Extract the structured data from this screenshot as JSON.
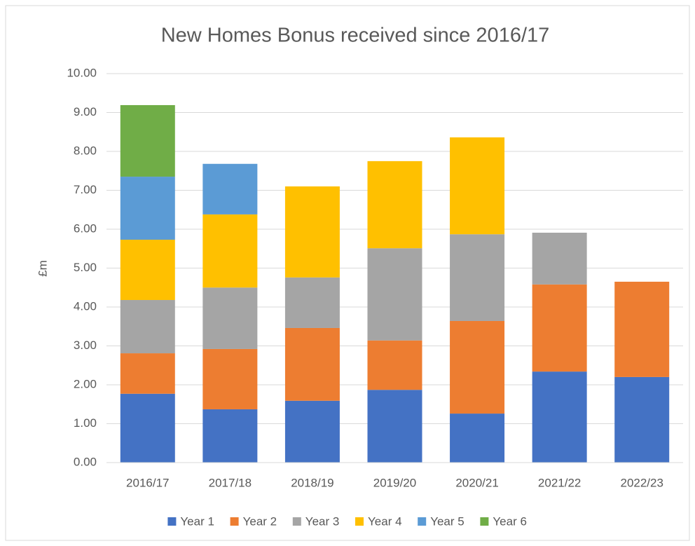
{
  "chart_data": {
    "type": "stacked_bar",
    "title": "New Homes Bonus received since 2016/17",
    "y_label": "£m",
    "categories": [
      "2016/17",
      "2017/18",
      "2018/19",
      "2019/20",
      "2020/21",
      "2021/22",
      "2022/23"
    ],
    "series": [
      {
        "name": "Year 1",
        "color": "#4472c4",
        "values": [
          1.77,
          1.37,
          1.59,
          1.87,
          1.26,
          2.34,
          2.2
        ]
      },
      {
        "name": "Year 2",
        "color": "#ed7d31",
        "values": [
          1.04,
          1.55,
          1.87,
          1.27,
          2.38,
          2.24,
          2.45
        ]
      },
      {
        "name": "Year 3",
        "color": "#a5a5a5",
        "values": [
          1.37,
          1.58,
          1.3,
          2.37,
          2.23,
          1.33,
          null
        ]
      },
      {
        "name": "Year 4",
        "color": "#ffc000",
        "values": [
          1.55,
          1.88,
          2.34,
          2.24,
          2.49,
          null,
          null
        ]
      },
      {
        "name": "Year 5",
        "color": "#5b9bd5",
        "values": [
          1.62,
          1.3,
          null,
          null,
          null,
          null,
          null
        ]
      },
      {
        "name": "Year 6",
        "color": "#70ad47",
        "values": [
          1.84,
          null,
          null,
          null,
          null,
          null,
          null
        ]
      }
    ],
    "ylim": [
      0,
      10
    ],
    "yticks": [
      {
        "value": 0,
        "label": "0.00"
      },
      {
        "value": 1,
        "label": "1.00"
      },
      {
        "value": 2,
        "label": "2.00"
      },
      {
        "value": 3,
        "label": "3.00"
      },
      {
        "value": 4,
        "label": "4.00"
      },
      {
        "value": 5,
        "label": "5.00"
      },
      {
        "value": 6,
        "label": "6.00"
      },
      {
        "value": 7,
        "label": "7.00"
      },
      {
        "value": 8,
        "label": "8.00"
      },
      {
        "value": 9,
        "label": "9.00"
      },
      {
        "value": 10,
        "label": "10.00"
      }
    ],
    "grid": true,
    "legend": "bottom"
  }
}
